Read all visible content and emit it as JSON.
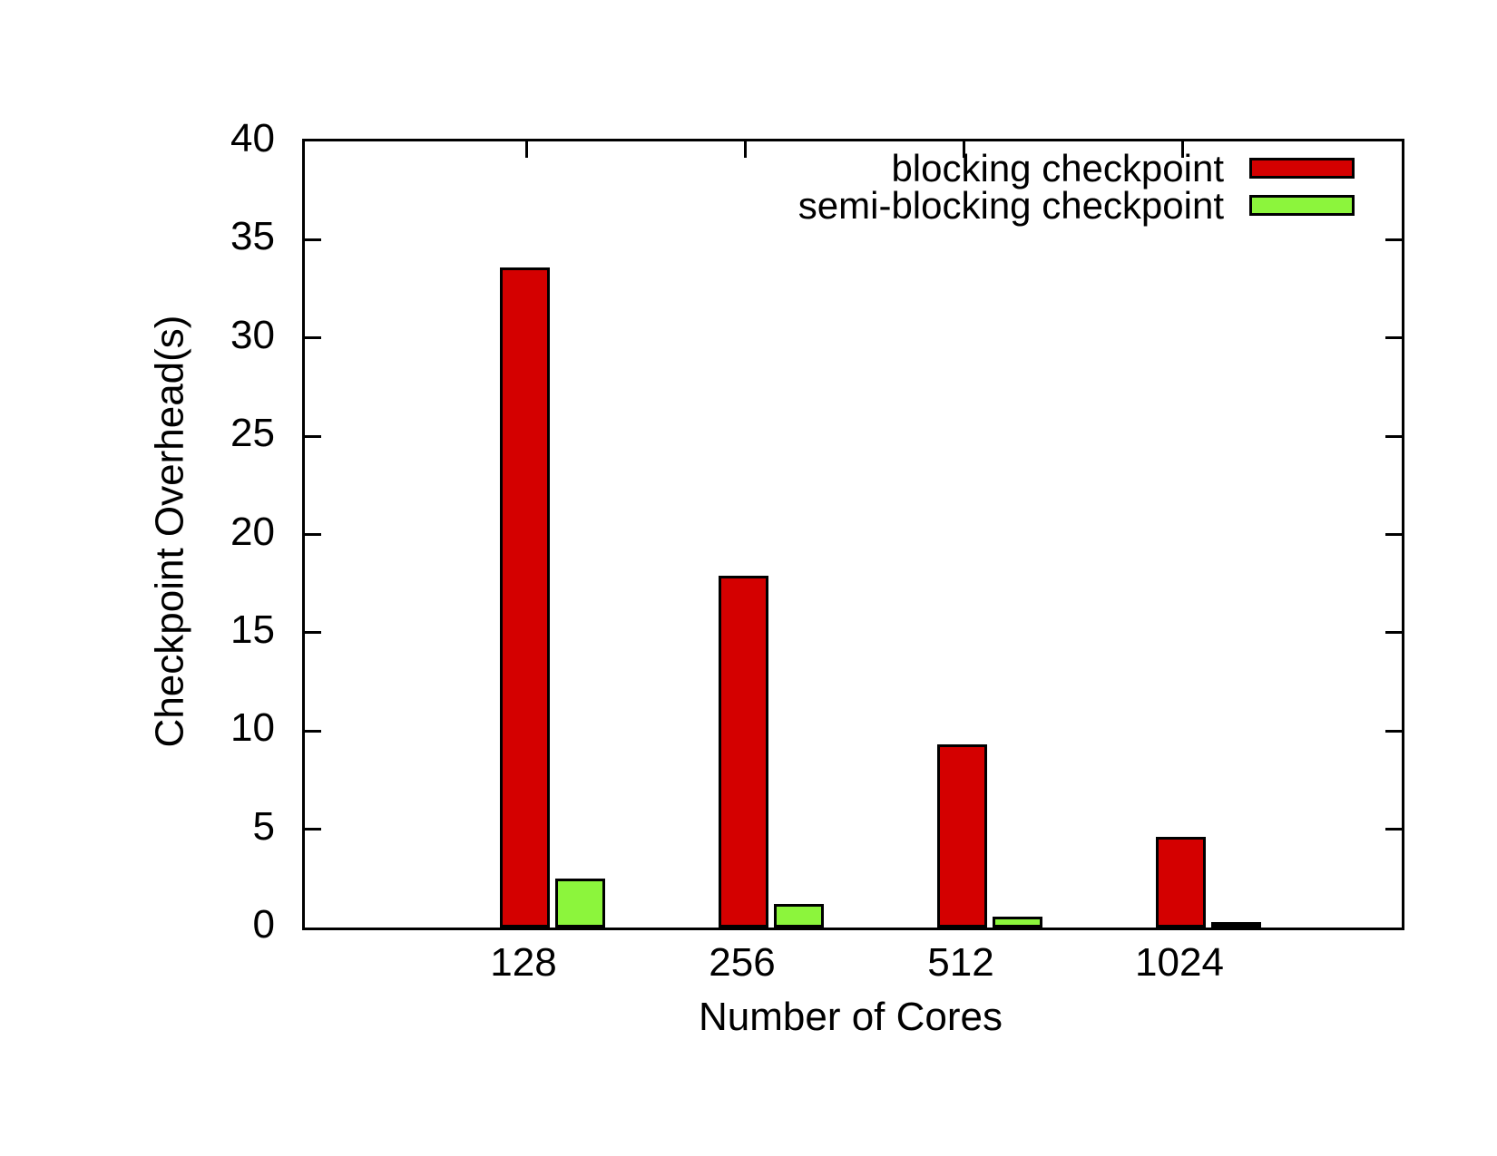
{
  "chart_data": {
    "type": "bar",
    "title": "",
    "categories": [
      "128",
      "256",
      "512",
      "1024"
    ],
    "series": [
      {
        "name": "blocking checkpoint",
        "color": "#d40000",
        "values": [
          33.6,
          17.9,
          9.3,
          4.6
        ]
      },
      {
        "name": "semi-blocking checkpoint",
        "color": "#8cf53c",
        "values": [
          2.5,
          1.2,
          0.55,
          0.3
        ]
      }
    ],
    "xlabel": "Number of Cores",
    "ylabel": "Checkpoint Overhead(s)",
    "ylim": [
      0,
      40
    ],
    "ytick_step": 5,
    "grid": false,
    "legend_position": "top-right",
    "frame_color": "#000000",
    "background_color": "#ffffff"
  }
}
